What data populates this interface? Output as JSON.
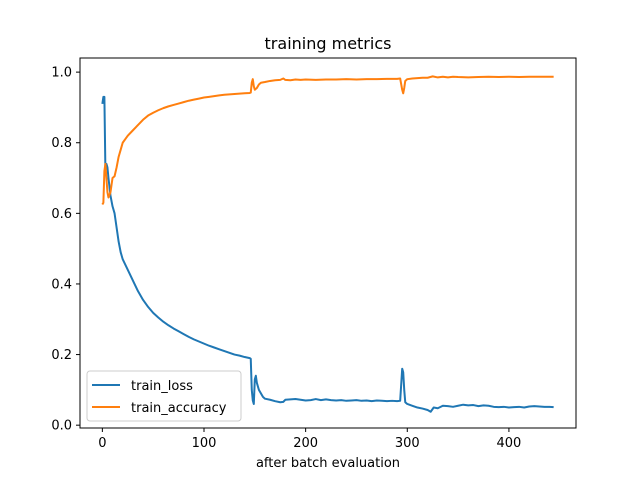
{
  "chart_data": {
    "type": "line",
    "title": "training metrics",
    "xlabel": "after batch evaluation",
    "ylabel": "",
    "xlim": [
      -22,
      466
    ],
    "ylim": [
      -0.008,
      1.04
    ],
    "xticks": [
      0,
      100,
      200,
      300,
      400
    ],
    "yticks": [
      0.0,
      0.2,
      0.4,
      0.6,
      0.8,
      1.0
    ],
    "legend": "lower-left",
    "grid": false,
    "series": [
      {
        "name": "train_loss",
        "color": "#1f77b4",
        "points": [
          [
            0,
            0.91
          ],
          [
            1,
            0.93
          ],
          [
            2,
            0.93
          ],
          [
            3,
            0.72
          ],
          [
            4,
            0.74
          ],
          [
            5,
            0.73
          ],
          [
            6,
            0.7
          ],
          [
            8,
            0.65
          ],
          [
            10,
            0.62
          ],
          [
            12,
            0.6
          ],
          [
            14,
            0.56
          ],
          [
            16,
            0.52
          ],
          [
            18,
            0.49
          ],
          [
            20,
            0.47
          ],
          [
            25,
            0.44
          ],
          [
            30,
            0.41
          ],
          [
            35,
            0.38
          ],
          [
            40,
            0.355
          ],
          [
            45,
            0.335
          ],
          [
            50,
            0.318
          ],
          [
            55,
            0.305
          ],
          [
            60,
            0.293
          ],
          [
            65,
            0.283
          ],
          [
            70,
            0.274
          ],
          [
            75,
            0.266
          ],
          [
            80,
            0.258
          ],
          [
            85,
            0.25
          ],
          [
            90,
            0.243
          ],
          [
            95,
            0.237
          ],
          [
            100,
            0.231
          ],
          [
            105,
            0.225
          ],
          [
            110,
            0.22
          ],
          [
            115,
            0.215
          ],
          [
            120,
            0.21
          ],
          [
            125,
            0.205
          ],
          [
            130,
            0.2
          ],
          [
            135,
            0.197
          ],
          [
            140,
            0.193
          ],
          [
            145,
            0.19
          ],
          [
            146,
            0.188
          ],
          [
            147,
            0.1
          ],
          [
            148,
            0.07
          ],
          [
            149,
            0.06
          ],
          [
            150,
            0.13
          ],
          [
            151,
            0.14
          ],
          [
            152,
            0.12
          ],
          [
            154,
            0.1
          ],
          [
            156,
            0.09
          ],
          [
            158,
            0.08
          ],
          [
            160,
            0.075
          ],
          [
            165,
            0.072
          ],
          [
            170,
            0.068
          ],
          [
            175,
            0.065
          ],
          [
            178,
            0.066
          ],
          [
            180,
            0.072
          ],
          [
            185,
            0.073
          ],
          [
            190,
            0.074
          ],
          [
            195,
            0.072
          ],
          [
            200,
            0.07
          ],
          [
            205,
            0.071
          ],
          [
            210,
            0.074
          ],
          [
            215,
            0.071
          ],
          [
            220,
            0.073
          ],
          [
            225,
            0.071
          ],
          [
            230,
            0.07
          ],
          [
            235,
            0.071
          ],
          [
            240,
            0.069
          ],
          [
            245,
            0.07
          ],
          [
            250,
            0.071
          ],
          [
            255,
            0.069
          ],
          [
            260,
            0.07
          ],
          [
            265,
            0.068
          ],
          [
            270,
            0.07
          ],
          [
            275,
            0.069
          ],
          [
            280,
            0.068
          ],
          [
            285,
            0.069
          ],
          [
            290,
            0.068
          ],
          [
            293,
            0.069
          ],
          [
            295,
            0.16
          ],
          [
            296,
            0.15
          ],
          [
            297,
            0.1
          ],
          [
            298,
            0.065
          ],
          [
            300,
            0.06
          ],
          [
            305,
            0.055
          ],
          [
            310,
            0.05
          ],
          [
            315,
            0.047
          ],
          [
            320,
            0.043
          ],
          [
            323,
            0.038
          ],
          [
            326,
            0.05
          ],
          [
            330,
            0.048
          ],
          [
            335,
            0.055
          ],
          [
            340,
            0.054
          ],
          [
            345,
            0.052
          ],
          [
            350,
            0.055
          ],
          [
            355,
            0.058
          ],
          [
            360,
            0.056
          ],
          [
            365,
            0.057
          ],
          [
            370,
            0.054
          ],
          [
            375,
            0.056
          ],
          [
            380,
            0.055
          ],
          [
            385,
            0.052
          ],
          [
            390,
            0.051
          ],
          [
            395,
            0.052
          ],
          [
            400,
            0.05
          ],
          [
            405,
            0.051
          ],
          [
            410,
            0.052
          ],
          [
            415,
            0.05
          ],
          [
            420,
            0.053
          ],
          [
            425,
            0.054
          ],
          [
            430,
            0.053
          ],
          [
            435,
            0.052
          ],
          [
            440,
            0.052
          ],
          [
            444,
            0.051
          ]
        ]
      },
      {
        "name": "train_accuracy",
        "color": "#ff7f0e",
        "points": [
          [
            0,
            0.625
          ],
          [
            1,
            0.63
          ],
          [
            2,
            0.72
          ],
          [
            3,
            0.74
          ],
          [
            4,
            0.7
          ],
          [
            5,
            0.66
          ],
          [
            6,
            0.645
          ],
          [
            8,
            0.66
          ],
          [
            10,
            0.7
          ],
          [
            12,
            0.705
          ],
          [
            14,
            0.73
          ],
          [
            16,
            0.76
          ],
          [
            18,
            0.78
          ],
          [
            20,
            0.8
          ],
          [
            25,
            0.82
          ],
          [
            30,
            0.835
          ],
          [
            35,
            0.85
          ],
          [
            40,
            0.865
          ],
          [
            45,
            0.877
          ],
          [
            50,
            0.885
          ],
          [
            55,
            0.892
          ],
          [
            60,
            0.898
          ],
          [
            65,
            0.903
          ],
          [
            70,
            0.907
          ],
          [
            75,
            0.911
          ],
          [
            80,
            0.915
          ],
          [
            85,
            0.919
          ],
          [
            90,
            0.922
          ],
          [
            95,
            0.925
          ],
          [
            100,
            0.928
          ],
          [
            105,
            0.93
          ],
          [
            110,
            0.932
          ],
          [
            115,
            0.934
          ],
          [
            120,
            0.936
          ],
          [
            125,
            0.937
          ],
          [
            130,
            0.938
          ],
          [
            135,
            0.939
          ],
          [
            140,
            0.94
          ],
          [
            145,
            0.941
          ],
          [
            146,
            0.942
          ],
          [
            147,
            0.97
          ],
          [
            148,
            0.98
          ],
          [
            149,
            0.96
          ],
          [
            150,
            0.95
          ],
          [
            152,
            0.955
          ],
          [
            154,
            0.965
          ],
          [
            156,
            0.97
          ],
          [
            160,
            0.972
          ],
          [
            165,
            0.975
          ],
          [
            170,
            0.977
          ],
          [
            175,
            0.978
          ],
          [
            178,
            0.982
          ],
          [
            180,
            0.978
          ],
          [
            185,
            0.977
          ],
          [
            190,
            0.979
          ],
          [
            195,
            0.978
          ],
          [
            200,
            0.979
          ],
          [
            210,
            0.978
          ],
          [
            220,
            0.979
          ],
          [
            230,
            0.979
          ],
          [
            240,
            0.98
          ],
          [
            250,
            0.979
          ],
          [
            260,
            0.98
          ],
          [
            270,
            0.98
          ],
          [
            280,
            0.981
          ],
          [
            290,
            0.981
          ],
          [
            293,
            0.982
          ],
          [
            295,
            0.95
          ],
          [
            296,
            0.94
          ],
          [
            297,
            0.955
          ],
          [
            298,
            0.975
          ],
          [
            300,
            0.98
          ],
          [
            305,
            0.982
          ],
          [
            310,
            0.983
          ],
          [
            315,
            0.984
          ],
          [
            320,
            0.984
          ],
          [
            325,
            0.988
          ],
          [
            330,
            0.985
          ],
          [
            335,
            0.987
          ],
          [
            340,
            0.985
          ],
          [
            345,
            0.987
          ],
          [
            350,
            0.986
          ],
          [
            360,
            0.985
          ],
          [
            370,
            0.986
          ],
          [
            380,
            0.987
          ],
          [
            390,
            0.986
          ],
          [
            400,
            0.987
          ],
          [
            410,
            0.986
          ],
          [
            420,
            0.987
          ],
          [
            430,
            0.987
          ],
          [
            444,
            0.987
          ]
        ]
      }
    ]
  }
}
